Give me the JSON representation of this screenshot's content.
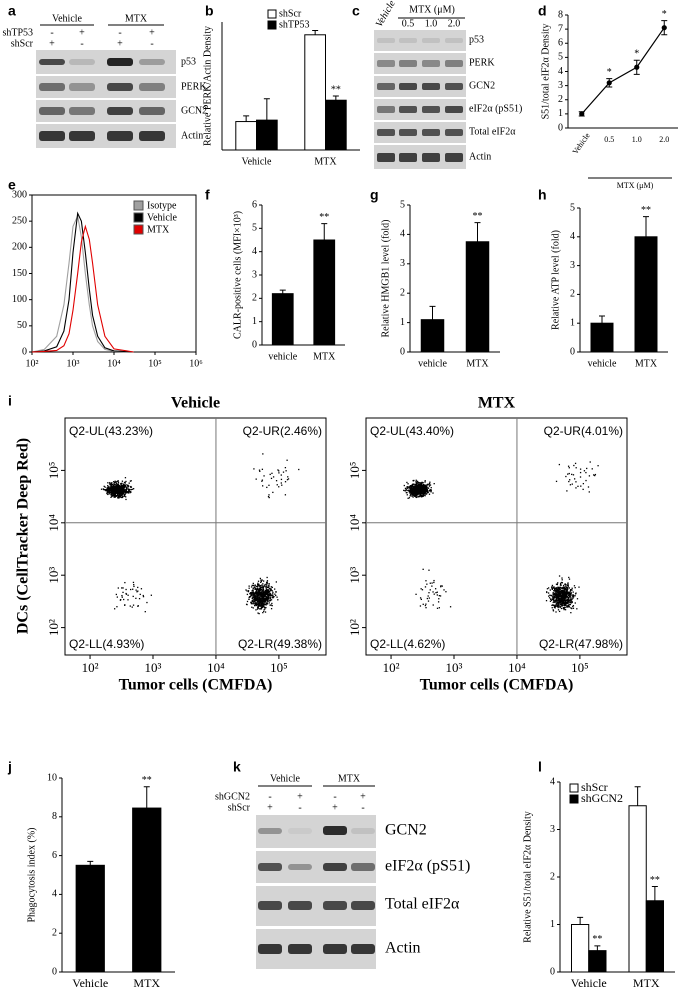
{
  "blot_a": {
    "panel": "a",
    "groups": [
      "Vehicle",
      "MTX"
    ],
    "conditions": [
      {
        "name": "shTP53",
        "signs": [
          "-",
          "+",
          "-",
          "+"
        ]
      },
      {
        "name": "shScr",
        "signs": [
          "+",
          "-",
          "+",
          "-"
        ]
      }
    ],
    "bands": [
      "p53",
      "PERK",
      "GCN2",
      "Actin"
    ]
  },
  "blot_c": {
    "panel": "c",
    "header": "MTX (μM)",
    "lanes": [
      "Vehicle",
      "0.5",
      "1.0",
      "2.0"
    ],
    "bands": [
      "p53",
      "PERK",
      "GCN2",
      "eIF2α (pS51)",
      "Total eIF2α",
      "Actin"
    ]
  },
  "blot_k": {
    "panel": "k",
    "groups": [
      "Vehicle",
      "MTX"
    ],
    "conditions": [
      {
        "name": "shGCN2",
        "signs": [
          "-",
          "+",
          "-",
          "+"
        ]
      },
      {
        "name": "shScr",
        "signs": [
          "+",
          "-",
          "+",
          "-"
        ]
      }
    ],
    "bands": [
      "GCN2",
      "eIF2α (pS51)",
      "Total eIF2α",
      "Actin"
    ]
  },
  "flow_i": {
    "panel": "i",
    "xlabel": "Tumor cells (CMFDA)",
    "ylabel": "DCs (CellTracker Deep Red)",
    "plots": [
      {
        "title": "Vehicle",
        "quadrants": [
          "Q2-UL(43.23%)",
          "Q2-UR(2.46%)",
          "Q2-LL(4.93%)",
          "Q2-LR(49.38%)"
        ]
      },
      {
        "title": "MTX",
        "quadrants": [
          "Q2-UL(43.40%)",
          "Q2-UR(4.01%)",
          "Q2-LL(4.62%)",
          "Q2-LR(47.98%)"
        ]
      }
    ],
    "xlim": [
      40,
      560000
    ],
    "ylim": [
      30,
      1000000
    ],
    "log_scale": true,
    "xticks": [
      {
        "value": 100,
        "label": "10²"
      },
      {
        "value": 1000,
        "label": "10³"
      },
      {
        "value": 10000,
        "label": "10⁴"
      },
      {
        "value": 100000,
        "label": "10⁵"
      }
    ],
    "yticks": [
      {
        "value": 100,
        "label": "10²"
      },
      {
        "value": 1000,
        "label": "10³"
      },
      {
        "value": 10000,
        "label": "10⁴"
      },
      {
        "value": 100000,
        "label": "10⁵"
      }
    ],
    "gate": [
      10000,
      10000
    ]
  },
  "chart_data": [
    {
      "panel": "b",
      "type": "bar",
      "ylabel": "Relative PERK/Actin Density",
      "categories": [
        "Vehicle",
        "MTX"
      ],
      "ylim": [
        0,
        4.5
      ],
      "series": [
        {
          "name": "shScr",
          "color": "#ffffff",
          "values": [
            1.0,
            4.05
          ],
          "errors": [
            0.2,
            0.15
          ]
        },
        {
          "name": "shTP53",
          "color": "#000000",
          "values": [
            1.05,
            1.75
          ],
          "errors": [
            0.75,
            0.15
          ],
          "significance": [
            null,
            "**"
          ]
        }
      ]
    },
    {
      "panel": "d",
      "type": "line",
      "ylabel": "S51/total eIF2α Density",
      "xlabel": "MTX (μM)",
      "categories": [
        "Vehicle",
        "0.5",
        "1.0",
        "2.0"
      ],
      "ylim": [
        0,
        8
      ],
      "yticks": [
        0,
        1,
        2,
        3,
        4,
        5,
        6,
        7,
        8
      ],
      "series": [
        {
          "color": "#000000",
          "values": [
            1.0,
            3.2,
            4.3,
            7.1
          ],
          "errors": [
            0.15,
            0.3,
            0.5,
            0.5
          ],
          "significance": [
            null,
            "*",
            "*",
            "*"
          ]
        }
      ]
    },
    {
      "panel": "e",
      "type": "histogram_overlay",
      "log_x": true,
      "xlim": [
        100,
        1000000
      ],
      "ylim": [
        0,
        300
      ],
      "xticks": [
        {
          "value": 100,
          "label": "10²"
        },
        {
          "value": 1000,
          "label": "10³"
        },
        {
          "value": 10000,
          "label": "10⁴"
        },
        {
          "value": 100000,
          "label": "10⁵"
        },
        {
          "value": 1000000,
          "label": "10⁶"
        }
      ],
      "yticks": [
        0,
        50,
        100,
        150,
        200,
        250,
        300
      ],
      "legend": "top-right",
      "x": [
        100,
        200,
        400,
        600,
        800,
        1000,
        1300,
        1600,
        2000,
        2500,
        3000,
        4000,
        6000,
        10000,
        30000
      ],
      "series": [
        {
          "name": "Isotype",
          "color": "#a0a0a0",
          "values": [
            0,
            5,
            30,
            90,
            170,
            240,
            260,
            220,
            150,
            90,
            50,
            20,
            5,
            1,
            0
          ]
        },
        {
          "name": "Vehicle",
          "color": "#000000",
          "values": [
            0,
            2,
            10,
            40,
            100,
            190,
            265,
            250,
            190,
            120,
            70,
            30,
            8,
            2,
            0
          ]
        },
        {
          "name": "MTX",
          "color": "#e00000",
          "values": [
            0,
            1,
            3,
            12,
            35,
            80,
            150,
            210,
            240,
            215,
            170,
            90,
            30,
            6,
            0
          ]
        }
      ]
    },
    {
      "panel": "f",
      "type": "bar",
      "ylabel": "CALR-positive cells (MFI×10³)",
      "categories": [
        "vehicle",
        "MTX"
      ],
      "ylim": [
        0,
        6
      ],
      "yticks": [
        0,
        1,
        2,
        3,
        4,
        5,
        6
      ],
      "series": [
        {
          "color": "#000000",
          "values": [
            2.2,
            4.5
          ],
          "errors": [
            0.15,
            0.7
          ],
          "significance": [
            null,
            "**"
          ]
        }
      ]
    },
    {
      "panel": "g",
      "type": "bar",
      "ylabel": "Relative HMGB1 level (fold)",
      "categories": [
        "vehicle",
        "MTX"
      ],
      "ylim": [
        0,
        5
      ],
      "yticks": [
        0,
        1,
        2,
        3,
        4,
        5
      ],
      "series": [
        {
          "color": "#000000",
          "values": [
            1.1,
            3.75
          ],
          "errors": [
            0.45,
            0.65
          ],
          "significance": [
            null,
            "**"
          ]
        }
      ]
    },
    {
      "panel": "h",
      "type": "bar",
      "ylabel": "Relative ATP level (fold)",
      "categories": [
        "vehicle",
        "MTX"
      ],
      "ylim": [
        0,
        5
      ],
      "yticks": [
        0,
        1,
        2,
        3,
        4,
        5
      ],
      "series": [
        {
          "color": "#000000",
          "values": [
            1.0,
            4.0
          ],
          "errors": [
            0.25,
            0.7
          ],
          "significance": [
            null,
            "**"
          ]
        }
      ]
    },
    {
      "panel": "j",
      "type": "bar",
      "ylabel": "Phagocytosis index (%)",
      "categories": [
        "Vehicle",
        "MTX"
      ],
      "ylim": [
        0,
        10
      ],
      "yticks": [
        0,
        2,
        4,
        6,
        8,
        10
      ],
      "series": [
        {
          "color": "#000000",
          "values": [
            5.5,
            8.45
          ],
          "errors": [
            0.2,
            1.1
          ],
          "significance": [
            null,
            "**"
          ]
        }
      ]
    },
    {
      "panel": "l",
      "type": "bar",
      "ylabel": "Relative S51/total eIF2α Density",
      "categories": [
        "Vehicle",
        "MTX"
      ],
      "ylim": [
        0,
        4
      ],
      "yticks": [
        0,
        1,
        2,
        3,
        4
      ],
      "series": [
        {
          "name": "shScr",
          "color": "#ffffff",
          "values": [
            1.0,
            3.5
          ],
          "errors": [
            0.15,
            0.4
          ]
        },
        {
          "name": "shGCN2",
          "color": "#000000",
          "values": [
            0.45,
            1.5
          ],
          "errors": [
            0.1,
            0.3
          ],
          "significance": [
            "**",
            "**"
          ]
        }
      ]
    }
  ]
}
